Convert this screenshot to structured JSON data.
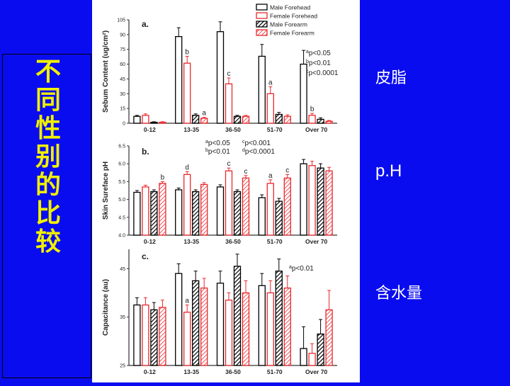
{
  "title_vertical": [
    "不",
    "同",
    "性",
    "别",
    "的",
    "比",
    "较"
  ],
  "side_labels": [
    "皮脂",
    "p.H",
    "含水量"
  ],
  "legend": [
    {
      "label": "Male Forehead",
      "style": "male-forehead"
    },
    {
      "label": "Female Forehead",
      "style": "female-forehead"
    },
    {
      "label": "Male Forearm",
      "style": "male-forearm"
    },
    {
      "label": "Female Forearm",
      "style": "female-forearm"
    }
  ],
  "colors": {
    "male": "#000000",
    "female": "#e8282d"
  },
  "chart_data": [
    {
      "type": "bar",
      "panel": "a.",
      "ylabel": "Sebum Content (ug/cm²)",
      "ylim": [
        0,
        105
      ],
      "yticks": [
        0,
        15,
        30,
        45,
        60,
        75,
        90,
        105
      ],
      "categories": [
        "0-12",
        "13-35",
        "36-50",
        "51-70",
        "Over 70"
      ],
      "series": [
        {
          "name": "Male Forehead",
          "values": [
            7,
            88,
            93,
            68,
            60
          ],
          "errors": [
            1,
            9,
            10,
            12,
            14
          ],
          "marks": [
            "",
            "",
            "",
            "",
            ""
          ]
        },
        {
          "name": "Female Forehead",
          "values": [
            8,
            61,
            40,
            30,
            8
          ],
          "errors": [
            1.5,
            7,
            6,
            7,
            2
          ],
          "marks": [
            "",
            "b",
            "c",
            "a",
            "b"
          ]
        },
        {
          "name": "Male Forearm",
          "values": [
            1,
            8,
            7,
            9,
            4
          ],
          "errors": [
            0.5,
            1.5,
            1,
            2,
            1.5
          ],
          "marks": [
            "",
            "",
            "",
            "",
            ""
          ]
        },
        {
          "name": "Female Forearm",
          "values": [
            1,
            5,
            7,
            7,
            2
          ],
          "errors": [
            0.5,
            1,
            1,
            1.5,
            0.8
          ],
          "marks": [
            "",
            "a",
            "",
            "",
            ""
          ]
        }
      ],
      "annotation": [
        "ap<0.05",
        "bp<0.01",
        "cp<0.0001"
      ]
    },
    {
      "type": "bar",
      "panel": "b.",
      "ylabel": "Skin Sureface pH",
      "ylim": [
        4.0,
        6.5
      ],
      "yticks": [
        4.0,
        4.5,
        5.0,
        5.5,
        6.0,
        6.5
      ],
      "categories": [
        "0-12",
        "13-35",
        "36-50",
        "51-70",
        "Over 70"
      ],
      "series": [
        {
          "name": "Male Forehead",
          "values": [
            5.2,
            5.27,
            5.35,
            5.05,
            6.0
          ],
          "errors": [
            0.05,
            0.05,
            0.06,
            0.08,
            0.12
          ],
          "marks": [
            "",
            "",
            "",
            "",
            ""
          ]
        },
        {
          "name": "Female Forehead",
          "values": [
            5.35,
            5.7,
            5.8,
            5.45,
            5.95
          ],
          "errors": [
            0.05,
            0.08,
            0.08,
            0.1,
            0.12
          ],
          "marks": [
            "",
            "d",
            "c",
            "a",
            ""
          ]
        },
        {
          "name": "Male Forearm",
          "values": [
            5.22,
            5.22,
            5.22,
            4.95,
            5.88
          ],
          "errors": [
            0.05,
            0.05,
            0.05,
            0.08,
            0.12
          ],
          "marks": [
            "",
            "",
            "",
            "",
            ""
          ]
        },
        {
          "name": "Female Forearm",
          "values": [
            5.45,
            5.42,
            5.6,
            5.6,
            5.8
          ],
          "errors": [
            0.05,
            0.05,
            0.07,
            0.1,
            0.1
          ],
          "marks": [
            "b",
            "",
            "c",
            "c",
            ""
          ]
        }
      ],
      "annotation": [
        "ap<0.05",
        "cp<0.001",
        "bp<0.01",
        "dp<0.0001"
      ]
    },
    {
      "type": "bar",
      "panel": "c.",
      "ylabel": "Capacitance (au)",
      "ylim": [
        25,
        49
      ],
      "yticks": [
        25,
        35,
        45
      ],
      "categories": [
        "0-12",
        "13-35",
        "36-50",
        "51-70",
        "Over 70"
      ],
      "series": [
        {
          "name": "Male Forehead",
          "values": [
            37.5,
            44,
            42,
            41.5,
            28.5
          ],
          "errors": [
            1.5,
            2,
            2.5,
            2.5,
            4.5
          ],
          "marks": [
            "",
            "",
            "",
            "",
            ""
          ]
        },
        {
          "name": "Female Forehead",
          "values": [
            37.5,
            36,
            38.5,
            40,
            27.5
          ],
          "errors": [
            1.5,
            1.5,
            1.5,
            2.5,
            2
          ],
          "marks": [
            "",
            "a",
            "",
            "",
            ""
          ]
        },
        {
          "name": "Male Forearm",
          "values": [
            36.5,
            42.5,
            45.5,
            44.5,
            31.5
          ],
          "errors": [
            1.5,
            2,
            2.5,
            2.5,
            3
          ],
          "marks": [
            "",
            "",
            "",
            "",
            ""
          ]
        },
        {
          "name": "Female Forearm",
          "values": [
            37,
            41,
            40,
            41,
            36.5
          ],
          "errors": [
            1.5,
            2,
            2.5,
            2.5,
            4
          ],
          "marks": [
            "",
            "",
            "",
            "",
            ""
          ]
        }
      ],
      "annotation": [
        "ap<0.01"
      ]
    }
  ]
}
